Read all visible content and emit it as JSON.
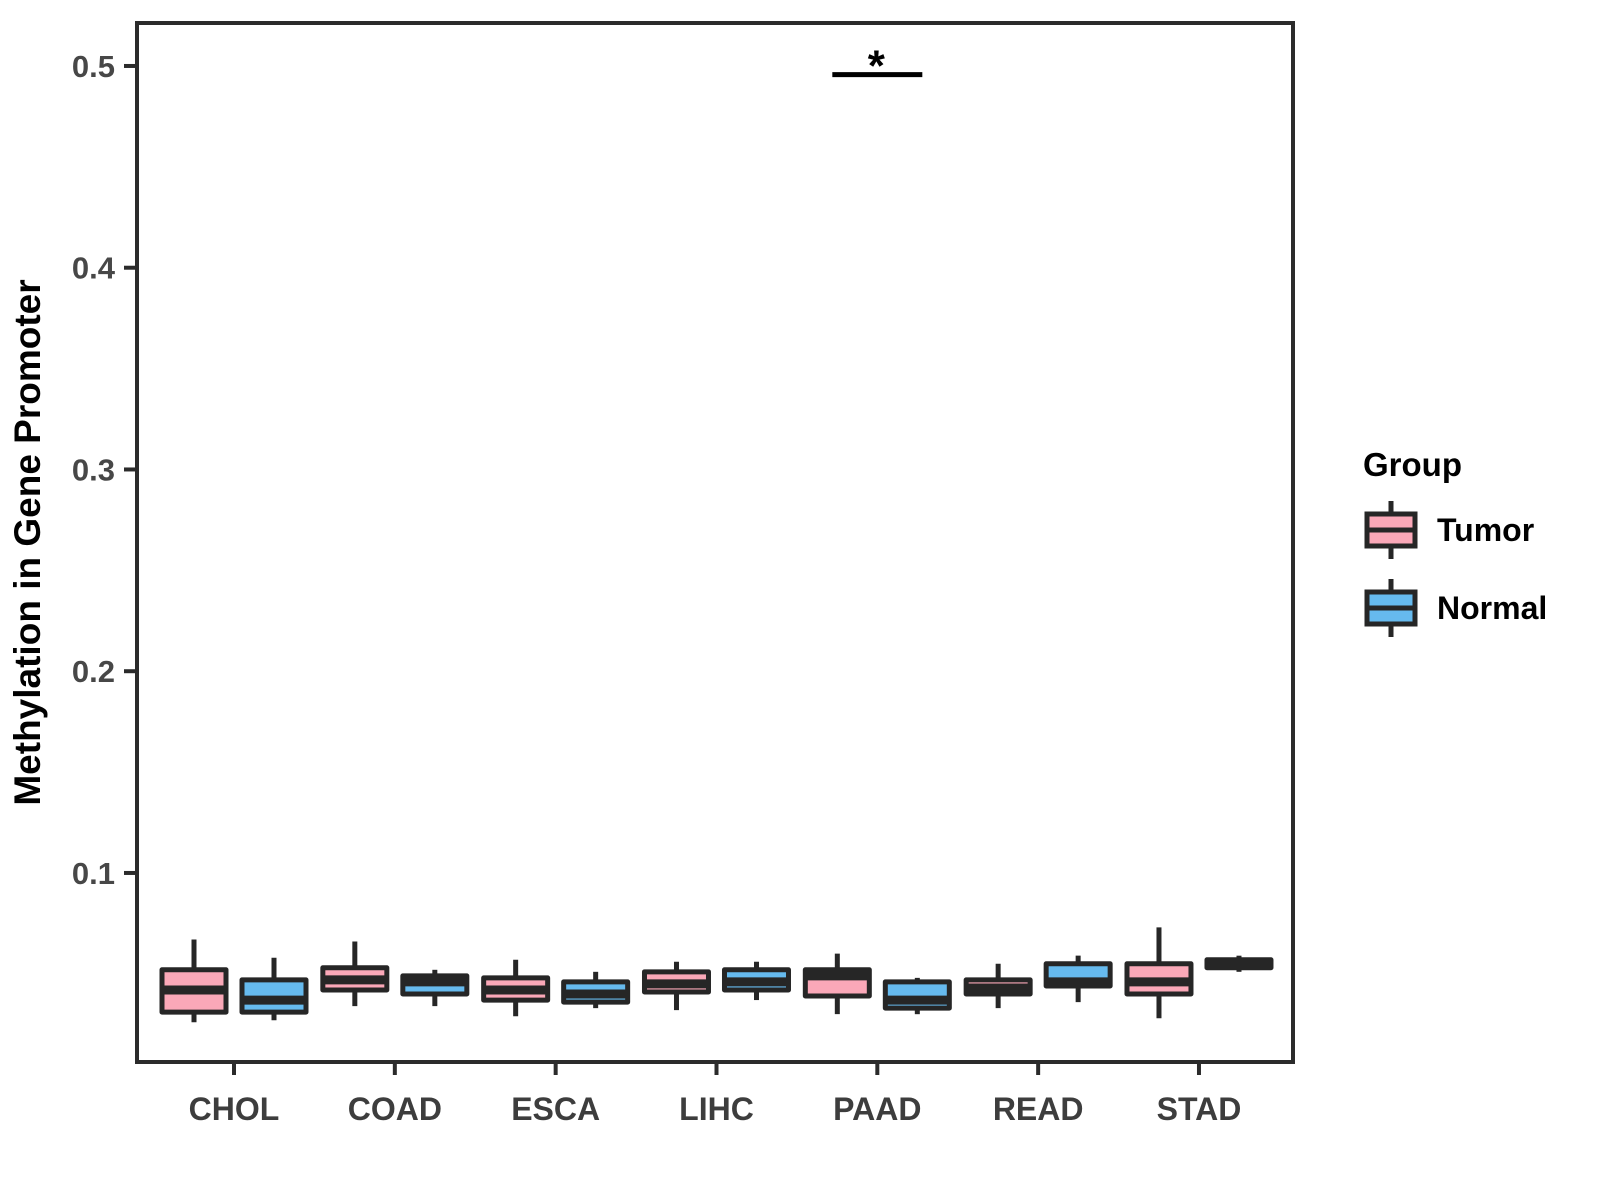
{
  "chart_data": {
    "type": "boxplot",
    "title": "",
    "xlabel": "",
    "ylabel": "Methylation in Gene Promoter",
    "ylim": [
      0.0063,
      0.5213
    ],
    "yticks": [
      "0.1",
      "0.2",
      "0.3",
      "0.4",
      "0.5"
    ],
    "ytick_values": [
      0.1,
      0.2,
      0.3,
      0.4,
      0.5
    ],
    "categories": [
      "CHOL",
      "COAD",
      "ESCA",
      "LIHC",
      "PAAD",
      "READ",
      "STAD"
    ],
    "grid": "off",
    "legend": {
      "title": "Group",
      "position": "right",
      "labels": [
        "Tumor",
        "Normal"
      ]
    },
    "series": [
      {
        "name": "Tumor",
        "color": "#FAA8B8",
        "boxes": [
          {
            "min": 0.026,
            "q1": 0.031,
            "median": 0.042,
            "q3": 0.052,
            "max": 0.067
          },
          {
            "min": 0.034,
            "q1": 0.042,
            "median": 0.047,
            "q3": 0.053,
            "max": 0.066
          },
          {
            "min": 0.029,
            "q1": 0.037,
            "median": 0.042,
            "q3": 0.048,
            "max": 0.057
          },
          {
            "min": 0.032,
            "q1": 0.041,
            "median": 0.045,
            "q3": 0.051,
            "max": 0.056
          },
          {
            "min": 0.03,
            "q1": 0.039,
            "median": 0.049,
            "q3": 0.052,
            "max": 0.06
          },
          {
            "min": 0.033,
            "q1": 0.04,
            "median": 0.043,
            "q3": 0.047,
            "max": 0.055
          },
          {
            "min": 0.028,
            "q1": 0.04,
            "median": 0.046,
            "q3": 0.055,
            "max": 0.073
          }
        ]
      },
      {
        "name": "Normal",
        "color": "#66BAEE",
        "boxes": [
          {
            "min": 0.027,
            "q1": 0.031,
            "median": 0.037,
            "q3": 0.047,
            "max": 0.058
          },
          {
            "min": 0.034,
            "q1": 0.04,
            "median": 0.046,
            "q3": 0.049,
            "max": 0.052
          },
          {
            "min": 0.033,
            "q1": 0.036,
            "median": 0.04,
            "q3": 0.046,
            "max": 0.051
          },
          {
            "min": 0.037,
            "q1": 0.042,
            "median": 0.046,
            "q3": 0.052,
            "max": 0.056
          },
          {
            "min": 0.03,
            "q1": 0.033,
            "median": 0.037,
            "q3": 0.046,
            "max": 0.048
          },
          {
            "min": 0.036,
            "q1": 0.044,
            "median": 0.046,
            "q3": 0.055,
            "max": 0.059
          },
          {
            "min": 0.051,
            "q1": 0.053,
            "median": 0.055,
            "q3": 0.057,
            "max": 0.059
          }
        ]
      }
    ],
    "annotations": [
      {
        "type": "significance",
        "category": "PAAD",
        "label": "*",
        "y": 0.4957
      }
    ],
    "style": {
      "box_border_color": "#262626",
      "axis_color": "#2b2b2b",
      "tick_label_color": "#474747",
      "title_color": "#000000",
      "significance_color": "#000000"
    }
  }
}
